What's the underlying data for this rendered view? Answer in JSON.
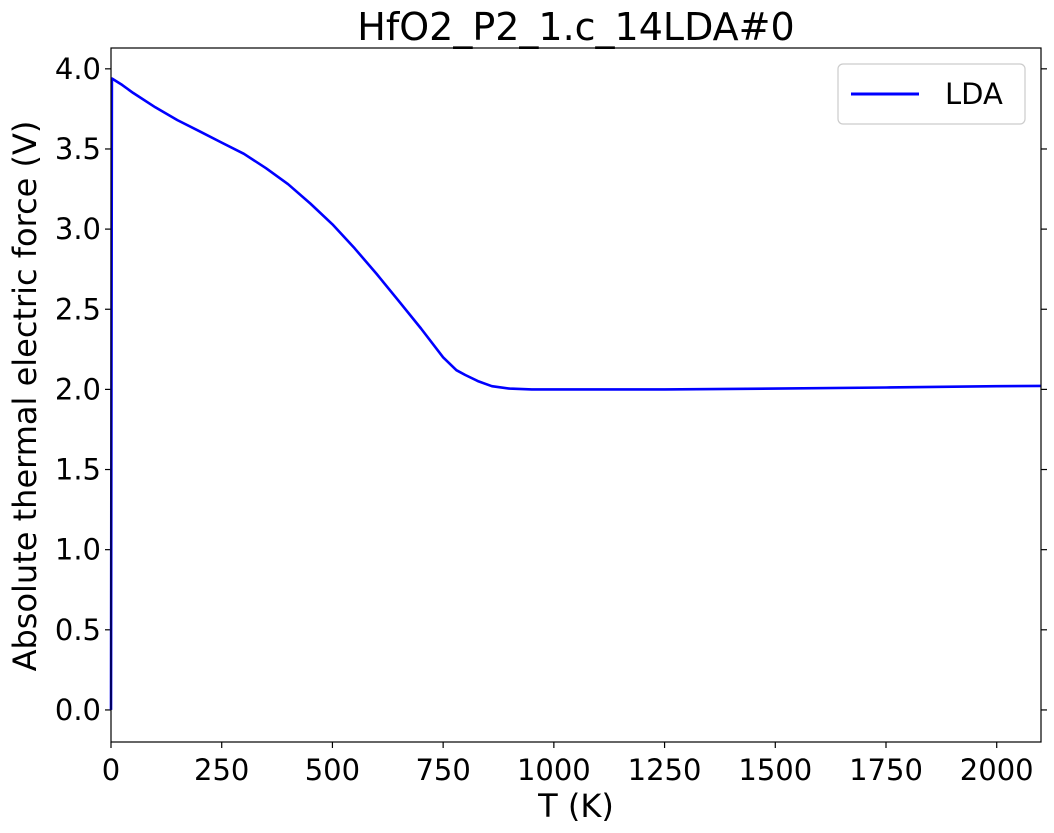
{
  "chart_data": {
    "type": "line",
    "title": "HfO2_P2_1.c_14LDA#0",
    "xlabel": "T (K)",
    "ylabel": "Absolute thermal electric force (V)",
    "xlim": [
      0,
      2100
    ],
    "ylim": [
      -0.2,
      4.13
    ],
    "xticks": [
      0,
      250,
      500,
      750,
      1000,
      1250,
      1500,
      1750,
      2000
    ],
    "yticks": [
      0.0,
      0.5,
      1.0,
      1.5,
      2.0,
      2.5,
      3.0,
      3.5,
      4.0
    ],
    "xtick_labels": [
      "0",
      "250",
      "500",
      "750",
      "1000",
      "1250",
      "1500",
      "1750",
      "2000"
    ],
    "ytick_labels": [
      "0.0",
      "0.5",
      "1.0",
      "1.5",
      "2.0",
      "2.5",
      "3.0",
      "3.5",
      "4.0"
    ],
    "grid": false,
    "legend_position": "top-right",
    "series": [
      {
        "name": "LDA",
        "color": "#0000ff",
        "x": [
          0,
          2,
          25,
          50,
          100,
          150,
          200,
          250,
          300,
          350,
          400,
          450,
          500,
          550,
          600,
          650,
          700,
          750,
          780,
          800,
          830,
          860,
          900,
          950,
          1000,
          1050,
          1100,
          1250,
          1500,
          1750,
          2000,
          2100
        ],
        "y": [
          0.0,
          3.94,
          3.9,
          3.85,
          3.76,
          3.68,
          3.61,
          3.54,
          3.47,
          3.38,
          3.28,
          3.16,
          3.03,
          2.88,
          2.72,
          2.55,
          2.38,
          2.2,
          2.12,
          2.09,
          2.05,
          2.02,
          2.005,
          2.0,
          2.0,
          2.0,
          2.0,
          2.0,
          2.005,
          2.012,
          2.02,
          2.022
        ]
      }
    ]
  }
}
